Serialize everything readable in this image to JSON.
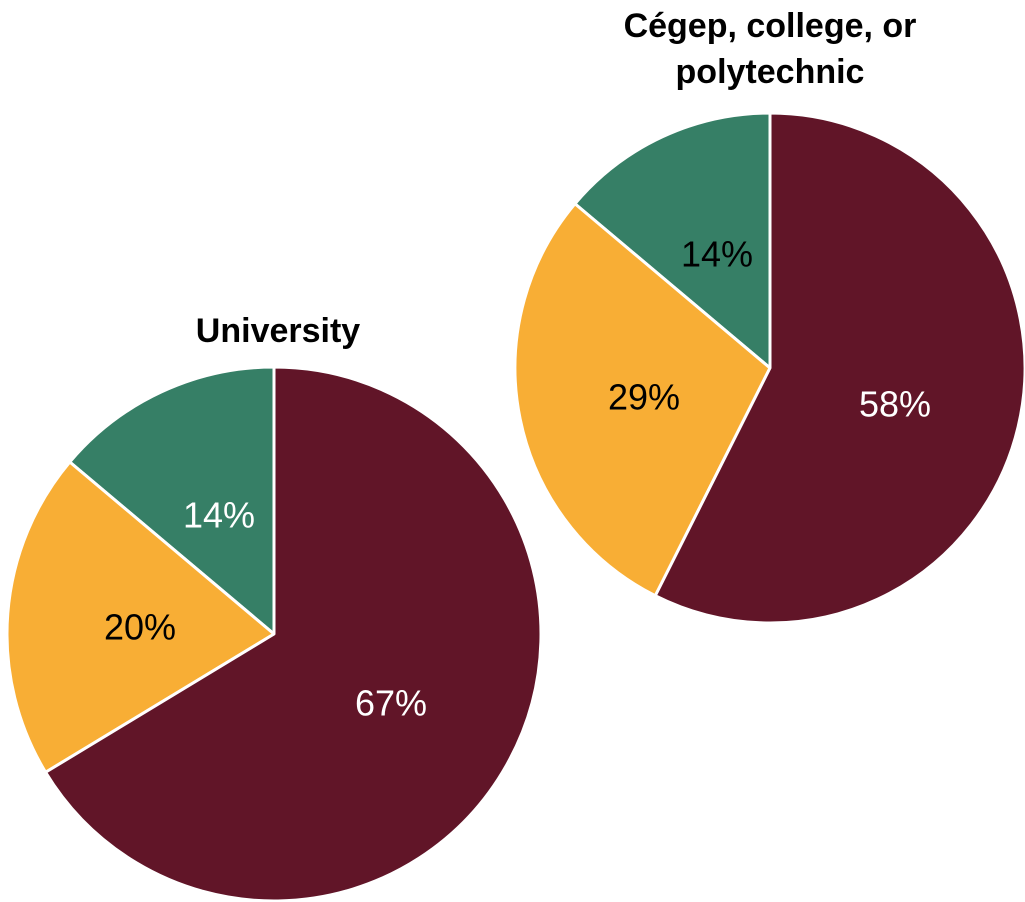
{
  "chart_data": [
    {
      "type": "pie",
      "title_lines": [
        "University"
      ],
      "start_angle_deg": 0,
      "direction": "clockwise",
      "slices": [
        {
          "label": "67%",
          "value": 67,
          "color": "#611528",
          "text_color": "#ffffff"
        },
        {
          "label": "20%",
          "value": 20,
          "color": "#f8ae35",
          "text_color": "#000000"
        },
        {
          "label": "14%",
          "value": 14,
          "color": "#367f66",
          "text_color": "#ffffff"
        }
      ]
    },
    {
      "type": "pie",
      "title_lines": [
        "Cégep, college, or",
        "polytechnic"
      ],
      "start_angle_deg": 0,
      "direction": "clockwise",
      "slices": [
        {
          "label": "58%",
          "value": 58,
          "color": "#611528",
          "text_color": "#ffffff"
        },
        {
          "label": "29%",
          "value": 29,
          "color": "#f8ae35",
          "text_color": "#000000"
        },
        {
          "label": "14%",
          "value": 14,
          "color": "#367f66",
          "text_color": "#000000"
        }
      ]
    }
  ]
}
